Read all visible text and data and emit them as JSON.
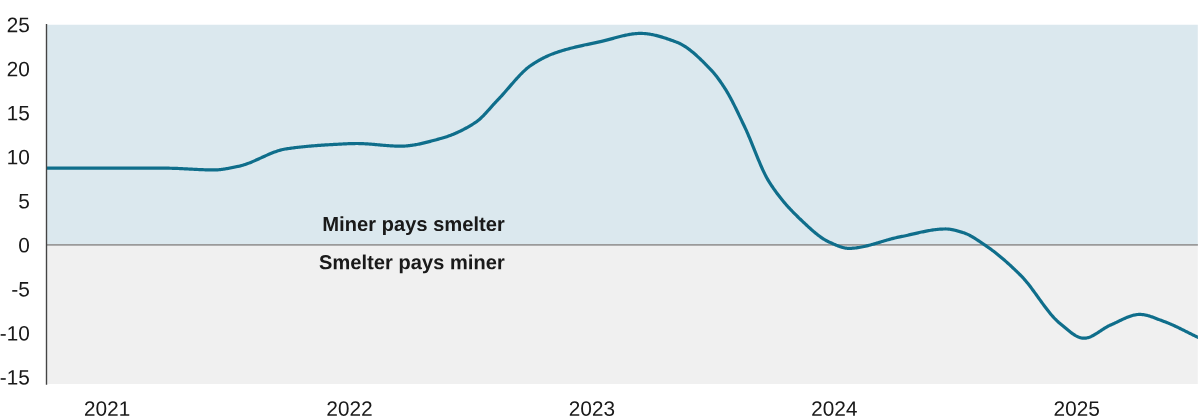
{
  "chart_data": {
    "type": "line",
    "x": [
      2020.75,
      2021.24,
      2021.44,
      2021.54,
      2021.74,
      2021.94,
      2022.03,
      2022.21,
      2022.38,
      2022.52,
      2022.61,
      2022.75,
      2022.85,
      2023.04,
      2023.2,
      2023.35,
      2023.49,
      2023.55,
      2023.63,
      2023.73,
      2023.86,
      2023.98,
      2024.06,
      2024.27,
      2024.46,
      2024.53,
      2024.62,
      2024.77,
      2024.93,
      2025.03,
      2025.14,
      2025.26,
      2025.36,
      2025.5
    ],
    "series": [
      {
        "color": "#0f6e8b",
        "values": [
          8.7,
          8.7,
          8.5,
          8.9,
          10.9,
          11.4,
          11.5,
          11.2,
          12.1,
          13.9,
          16.4,
          20.4,
          21.8,
          23.1,
          24.0,
          23.0,
          19.9,
          17.7,
          13.4,
          7.2,
          2.9,
          0.3,
          -0.4,
          0.9,
          1.8,
          1.4,
          0.0,
          -3.5,
          -8.9,
          -10.6,
          -9.1,
          -7.9,
          -8.7,
          -10.5
        ]
      }
    ],
    "xlim": [
      2020.75,
      2025.5
    ],
    "xticks": [
      2021,
      2022,
      2023,
      2024,
      2025
    ],
    "ylim": [
      -15.8,
      25
    ],
    "yticks": [
      -15,
      -10,
      -5,
      0,
      5,
      10,
      15,
      20,
      25
    ],
    "bands": [
      {
        "axis": "y",
        "from": 0,
        "to": 25,
        "label": "Miner pays smelter",
        "color": "#dbe8ee"
      },
      {
        "axis": "y",
        "from": -15.8,
        "to": 0,
        "label": "Smelter pays miner",
        "color": "#f0f0f0"
      }
    ],
    "ref_lines": [
      {
        "axis": "y",
        "value": 0,
        "color": "#9a9a9a"
      }
    ],
    "line_style": "solid"
  }
}
